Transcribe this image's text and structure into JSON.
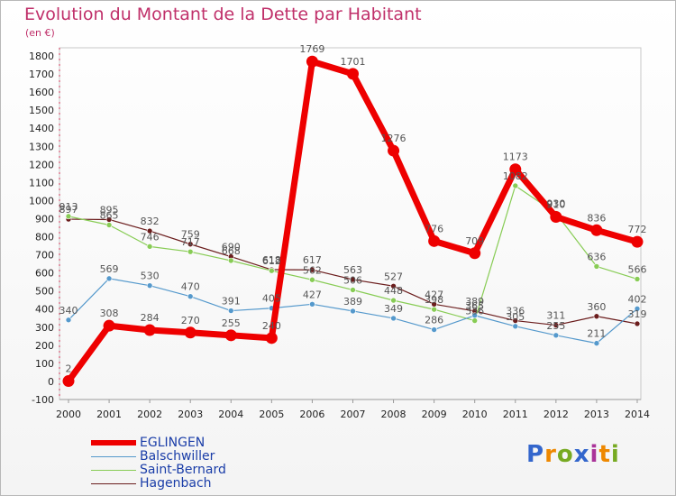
{
  "chart_data": {
    "type": "line",
    "title": "Evolution du Montant de la Dette par Habitant",
    "subtitle": "(en €)",
    "xlabel": "",
    "ylabel": "",
    "ylim": [
      -100,
      1800
    ],
    "yticks": [
      -100,
      0,
      100,
      200,
      300,
      400,
      500,
      600,
      700,
      800,
      900,
      1000,
      1100,
      1200,
      1300,
      1400,
      1500,
      1600,
      1700,
      1800
    ],
    "x": [
      "2000",
      "2001",
      "2002",
      "2003",
      "2004",
      "2005",
      "2006",
      "2007",
      "2008",
      "2009",
      "2010",
      "2011",
      "2012",
      "2013",
      "2014"
    ],
    "grid": false,
    "legend_position": "bottom-left",
    "series": [
      {
        "name": "Hagenbach",
        "color": "#6b1d1d",
        "values": [
          897,
          895,
          832,
          759,
          690,
          618,
          617,
          563,
          527,
          427,
          389,
          336,
          311,
          360,
          319
        ]
      },
      {
        "name": "Saint-Bernard",
        "color": "#88cc55",
        "values": [
          913,
          865,
          746,
          717,
          668,
          612,
          562,
          506,
          448,
          398,
          336,
          1082,
          930,
          636,
          566
        ]
      },
      {
        "name": "Balschwiller",
        "color": "#5599cc",
        "values": [
          340,
          569,
          530,
          470,
          391,
          405,
          427,
          389,
          349,
          286,
          365,
          305,
          255,
          211,
          402
        ]
      },
      {
        "name": "EGLINGEN",
        "color": "#ee0000",
        "values": [
          2,
          308,
          284,
          270,
          255,
          240,
          1769,
          1701,
          1276,
          776,
          709,
          1173,
          910,
          836,
          772
        ]
      }
    ]
  },
  "legend": [
    {
      "name": "EGLINGEN",
      "color": "#1a3da8"
    },
    {
      "name": "Balschwiller",
      "color": "#1a3da8"
    },
    {
      "name": "Saint-Bernard",
      "color": "#1a3da8"
    },
    {
      "name": "Hagenbach",
      "color": "#1a3da8"
    }
  ],
  "logo": {
    "text": "Proxiti",
    "colors": [
      "#3366cc",
      "#ee8800",
      "#77aa22",
      "#3366cc",
      "#aa3399",
      "#ee8800",
      "#77aa22"
    ]
  }
}
